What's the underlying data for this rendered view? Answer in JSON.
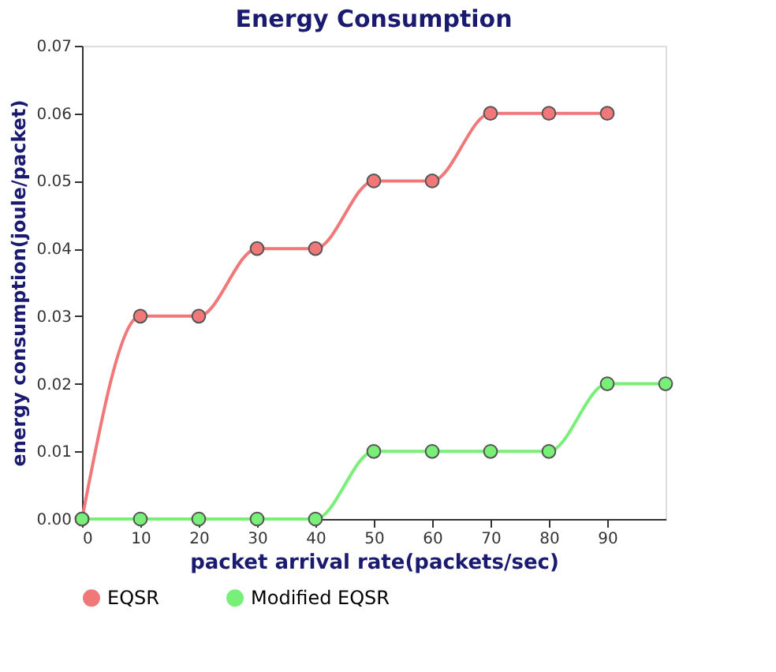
{
  "chart_data": {
    "type": "line",
    "title": "Energy Consumption",
    "xlabel": "packet arrival rate(packets/sec)",
    "ylabel": "energy consumption(joule/packet)",
    "xlim": [
      0,
      100
    ],
    "xticks": [
      0,
      10,
      20,
      30,
      40,
      50,
      60,
      70,
      80,
      90
    ],
    "ylim": [
      0,
      0.07
    ],
    "yticks": [
      {
        "value": 0,
        "label": "0.00"
      },
      {
        "value": 0.01,
        "label": "0.01"
      },
      {
        "value": 0.02,
        "label": "0.02"
      },
      {
        "value": 0.03,
        "label": "0.03"
      },
      {
        "value": 0.04,
        "label": "0.04"
      },
      {
        "value": 0.05,
        "label": "0.05"
      },
      {
        "value": 0.06,
        "label": "0.06"
      },
      {
        "value": 0.07,
        "label": "0.07"
      }
    ],
    "series": [
      {
        "name": "EQSR",
        "color": "#f07878",
        "x": [
          0,
          10,
          20,
          30,
          40,
          50,
          60,
          70,
          80,
          90
        ],
        "values": [
          0,
          0.03,
          0.03,
          0.04,
          0.04,
          0.05,
          0.05,
          0.06,
          0.06,
          0.06
        ]
      },
      {
        "name": "Modified EQSR",
        "color": "#78f078",
        "x": [
          0,
          10,
          20,
          30,
          40,
          50,
          60,
          70,
          80,
          90,
          100
        ],
        "values": [
          0,
          0,
          0,
          0,
          0,
          0.01,
          0.01,
          0.01,
          0.01,
          0.02,
          0.02
        ]
      }
    ],
    "marker": "circle",
    "line_style": "solid",
    "grid": false,
    "legend": "bottom left"
  }
}
